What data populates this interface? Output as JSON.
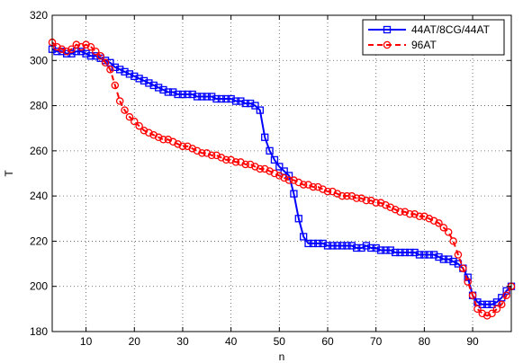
{
  "chart_data": {
    "type": "line",
    "xlabel": "n",
    "ylabel": "T",
    "xlim": [
      3,
      98
    ],
    "ylim": [
      180,
      320
    ],
    "x_ticks": [
      10,
      20,
      30,
      40,
      50,
      60,
      70,
      80,
      90
    ],
    "y_ticks": [
      180,
      200,
      220,
      240,
      260,
      280,
      300,
      320
    ],
    "grid": true,
    "legend_position": "top-right",
    "series": [
      {
        "name": "44AT/8CG/44AT",
        "color": "#0000ff",
        "line_style": "solid",
        "marker": "square",
        "x": [
          3,
          4,
          5,
          6,
          7,
          8,
          9,
          10,
          11,
          12,
          13,
          14,
          15,
          16,
          17,
          18,
          19,
          20,
          21,
          22,
          23,
          24,
          25,
          26,
          27,
          28,
          29,
          30,
          31,
          32,
          33,
          34,
          35,
          36,
          37,
          38,
          39,
          40,
          41,
          42,
          43,
          44,
          45,
          46,
          47,
          48,
          49,
          50,
          51,
          52,
          53,
          54,
          55,
          56,
          57,
          58,
          59,
          60,
          61,
          62,
          63,
          64,
          65,
          66,
          67,
          68,
          69,
          70,
          71,
          72,
          73,
          74,
          75,
          76,
          77,
          78,
          79,
          80,
          81,
          82,
          83,
          84,
          85,
          86,
          87,
          88,
          89,
          90,
          91,
          92,
          93,
          94,
          95,
          96,
          97,
          98
        ],
        "y": [
          305,
          304,
          304,
          303,
          303,
          304,
          304,
          303,
          302,
          302,
          301,
          300,
          299,
          297,
          296,
          295,
          294,
          293,
          292,
          291,
          290,
          289,
          288,
          287,
          286,
          286,
          285,
          285,
          285,
          285,
          284,
          284,
          284,
          284,
          283,
          283,
          283,
          283,
          282,
          282,
          281,
          281,
          280,
          278,
          266,
          260,
          256,
          253,
          251,
          249,
          241,
          230,
          222,
          219,
          219,
          219,
          219,
          218,
          218,
          218,
          218,
          218,
          218,
          217,
          217,
          218,
          217,
          217,
          216,
          216,
          216,
          215,
          215,
          215,
          215,
          215,
          214,
          214,
          214,
          214,
          213,
          212,
          212,
          211,
          210,
          208,
          204,
          196,
          193,
          192,
          192,
          192,
          193,
          195,
          198,
          200
        ]
      },
      {
        "name": "96AT",
        "color": "#ff0000",
        "line_style": "dashed",
        "marker": "circle",
        "x": [
          3,
          4,
          5,
          6,
          7,
          8,
          9,
          10,
          11,
          12,
          13,
          14,
          15,
          16,
          17,
          18,
          19,
          20,
          21,
          22,
          23,
          24,
          25,
          26,
          27,
          28,
          29,
          30,
          31,
          32,
          33,
          34,
          35,
          36,
          37,
          38,
          39,
          40,
          41,
          42,
          43,
          44,
          45,
          46,
          47,
          48,
          49,
          50,
          51,
          52,
          53,
          54,
          55,
          56,
          57,
          58,
          59,
          60,
          61,
          62,
          63,
          64,
          65,
          66,
          67,
          68,
          69,
          70,
          71,
          72,
          73,
          74,
          75,
          76,
          77,
          78,
          79,
          80,
          81,
          82,
          83,
          84,
          85,
          86,
          87,
          88,
          89,
          90,
          91,
          92,
          93,
          94,
          95,
          96,
          97,
          98
        ],
        "y": [
          308,
          306,
          305,
          304,
          305,
          307,
          306,
          307,
          306,
          304,
          302,
          299,
          296,
          289,
          282,
          278,
          275,
          273,
          271,
          269,
          268,
          267,
          266,
          265,
          265,
          264,
          263,
          262,
          262,
          261,
          260,
          259,
          259,
          258,
          258,
          257,
          256,
          256,
          255,
          255,
          254,
          254,
          253,
          252,
          252,
          251,
          250,
          249,
          248,
          247,
          247,
          246,
          245,
          245,
          244,
          244,
          243,
          242,
          242,
          241,
          240,
          240,
          240,
          239,
          239,
          238,
          238,
          237,
          237,
          236,
          235,
          234,
          233,
          233,
          232,
          232,
          231,
          231,
          230,
          229,
          228,
          226,
          224,
          220,
          214,
          208,
          202,
          196,
          190,
          188,
          187,
          188,
          190,
          192,
          196,
          200
        ]
      }
    ]
  }
}
